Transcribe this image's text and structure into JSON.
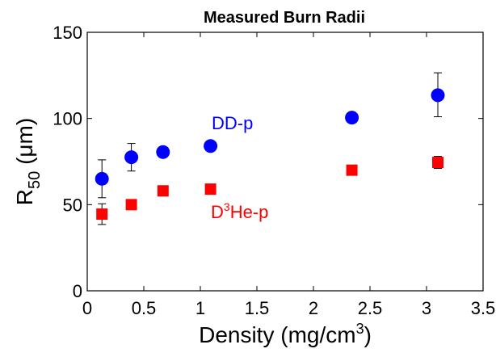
{
  "chart_data": {
    "type": "scatter",
    "title": "Measured Burn Radii",
    "xlabel": {
      "main": "Density (mg/cm",
      "sup": "3",
      "tail": ")"
    },
    "ylabel": {
      "main": "R",
      "sub": "50",
      "tail": " (μm)"
    },
    "xlim": [
      0,
      3.5
    ],
    "ylim": [
      0,
      150
    ],
    "xticks": [
      "0",
      "0.5",
      "1",
      "1.5",
      "2",
      "2.5",
      "3",
      "3.5"
    ],
    "yticks": [
      "0",
      "50",
      "100",
      "150"
    ],
    "grid": false,
    "series": [
      {
        "name": "DD-p",
        "label_parts": {
          "main": "DD-p"
        },
        "marker": "circle",
        "color": "#0000ff",
        "x": [
          0.13,
          0.39,
          0.67,
          1.09,
          2.34,
          3.1
        ],
        "y": [
          65,
          77.5,
          80.5,
          84,
          100.5,
          113.5
        ],
        "err_low": [
          54,
          69.5,
          null,
          null,
          null,
          101
        ],
        "err_high": [
          76,
          85.5,
          null,
          null,
          null,
          126.5
        ]
      },
      {
        "name": "D3He-p",
        "label_parts": {
          "pre": "D",
          "sup": "3",
          "main": "He-p"
        },
        "marker": "square",
        "color": "#ff0000",
        "x": [
          0.13,
          0.39,
          0.67,
          1.09,
          2.34,
          3.1
        ],
        "y": [
          44.5,
          50,
          58,
          59,
          70,
          74.5
        ],
        "err_low": [
          38.5,
          null,
          null,
          null,
          null,
          71
        ],
        "err_high": [
          50.5,
          null,
          null,
          null,
          null,
          78
        ]
      }
    ]
  }
}
